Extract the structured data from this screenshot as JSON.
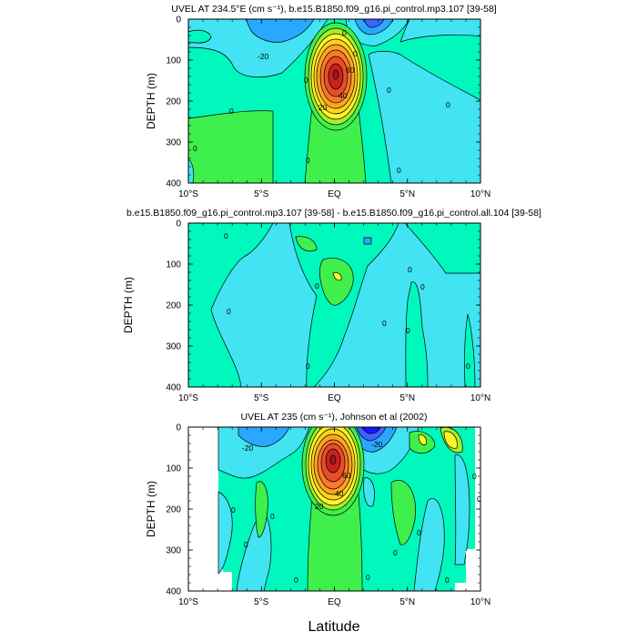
{
  "colors": {
    "levels": [
      {
        "max": -30,
        "color": "#1515ff"
      },
      {
        "max": -20,
        "color": "#3c64ff"
      },
      {
        "max": -10,
        "color": "#29a8ff"
      },
      {
        "max": 0,
        "color": "#42e3f2"
      },
      {
        "max": 10,
        "color": "#00f8bd"
      },
      {
        "max": 20,
        "color": "#3ff04d"
      },
      {
        "max": 30,
        "color": "#a5ef2a"
      },
      {
        "max": 40,
        "color": "#fff42a"
      },
      {
        "max": 50,
        "color": "#ffd21c"
      },
      {
        "max": 60,
        "color": "#ffa523"
      },
      {
        "max": 70,
        "color": "#f9782c"
      },
      {
        "max": 80,
        "color": "#e84e27"
      },
      {
        "max": 999,
        "color": "#cc2020"
      }
    ]
  },
  "figure": {
    "x_axis_label": "Latitude"
  },
  "chart_data": [
    {
      "type": "heatmap",
      "title": "UVEL AT 234.5°E (cm s⁻¹), b.e15.B1850.f09_g16.pi_control.mp3.107 [39-58]",
      "xlabel": "Latitude",
      "ylabel": "DEPTH (m)",
      "xlim": [
        -10,
        10
      ],
      "ylim": [
        400,
        0
      ],
      "x_ticks": [
        "10°S",
        "5°S",
        "EQ",
        "5°N",
        "10°N"
      ],
      "y_ticks": [
        "0",
        "100",
        "200",
        "300",
        "400"
      ],
      "contour_labels": [
        "-20",
        "0",
        "0",
        "0",
        "0",
        "0",
        "0",
        "0",
        "0",
        "20",
        "40",
        "60",
        "0"
      ],
      "features": [
        {
          "kind": "core_max",
          "x": 0.0,
          "depth": 120,
          "value": 100
        },
        {
          "kind": "surface_min",
          "x": 2.0,
          "depth": 0,
          "value": -20
        },
        {
          "kind": "surface_westward",
          "x": -4.5,
          "depth": 20,
          "value": -5
        }
      ]
    },
    {
      "type": "heatmap",
      "title": "b.e15.B1850.f09_g16.pi_control.mp3.107 [39-58] - b.e15.B1850.f09_g16.pi_control.all.104 [39-58]",
      "xlabel": "Latitude",
      "ylabel": "DEPTH (m)",
      "xlim": [
        -10,
        10
      ],
      "ylim": [
        400,
        0
      ],
      "x_ticks": [
        "10°S",
        "5°S",
        "EQ",
        "5°N",
        "10°N"
      ],
      "y_ticks": [
        "0",
        "100",
        "200",
        "300",
        "400"
      ],
      "contour_labels": [
        "0",
        "0",
        "0",
        "0",
        "0",
        "0",
        "0",
        "0",
        "0"
      ],
      "features": [
        {
          "kind": "local_max",
          "x": 0.0,
          "depth": 130,
          "value": 25
        }
      ]
    },
    {
      "type": "heatmap",
      "title": "UVEL AT 235 (cm s⁻¹), Johnson et al (2002)",
      "xlabel": "Latitude",
      "ylabel": "DEPTH (m)",
      "xlim": [
        -10,
        10
      ],
      "ylim": [
        400,
        0
      ],
      "x_ticks": [
        "10°S",
        "5°S",
        "EQ",
        "5°N",
        "10°N"
      ],
      "y_ticks": [
        "0",
        "100",
        "200",
        "300",
        "400"
      ],
      "contour_labels": [
        "-20",
        "-20",
        "20",
        "40",
        "60",
        "0",
        "0",
        "0",
        "0",
        "0",
        "0",
        "0",
        "0",
        "0",
        "0"
      ],
      "features": [
        {
          "kind": "core_max",
          "x": -0.2,
          "depth": 90,
          "value": 100
        },
        {
          "kind": "surface_min",
          "x": 2.0,
          "depth": 5,
          "value": -40
        },
        {
          "kind": "surface_jet",
          "x": 7.0,
          "depth": 30,
          "value": 35
        }
      ]
    }
  ]
}
